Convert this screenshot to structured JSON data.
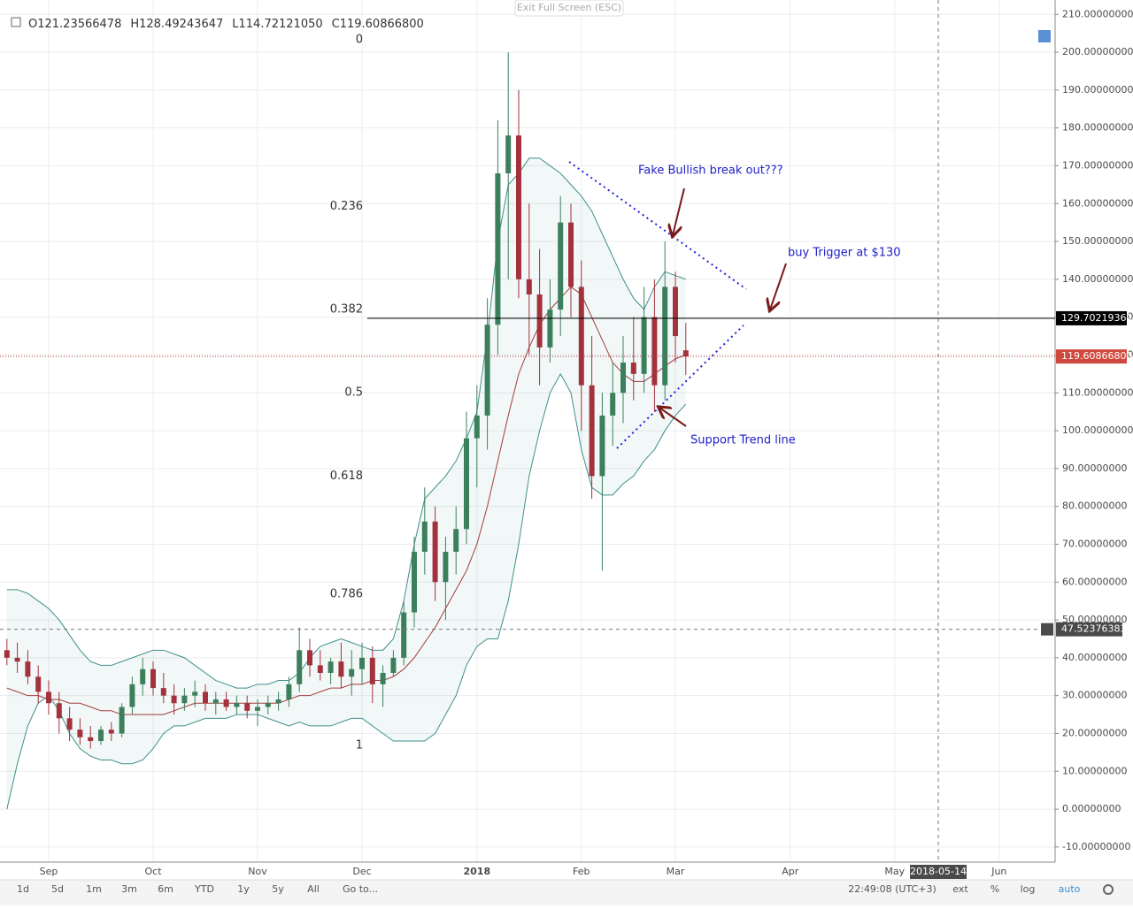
{
  "chart_data": {
    "type": "candlestick",
    "categories": [
      null,
      null,
      null,
      null,
      "Sep",
      null,
      null,
      null,
      null,
      null,
      null,
      null,
      null,
      null,
      "Oct",
      null,
      null,
      null,
      null,
      null,
      null,
      null,
      null,
      null,
      "Nov",
      null,
      null,
      null,
      null,
      null,
      null,
      null,
      null,
      null,
      "Dec",
      null,
      null,
      null,
      null,
      null,
      null,
      null,
      null,
      null,
      null,
      "2018",
      null,
      null,
      null,
      null,
      null,
      null,
      null,
      null,
      null,
      "Feb",
      null,
      null,
      null,
      null,
      null,
      null,
      null,
      null,
      "Mar",
      null,
      null,
      null,
      null,
      null,
      null,
      null,
      null,
      null,
      null,
      "Apr",
      null,
      null,
      null,
      null,
      null,
      null,
      null,
      null,
      null,
      "May",
      null,
      null,
      null,
      null,
      null,
      null,
      null,
      null,
      null,
      "Jun",
      null
    ],
    "open": [
      42,
      40,
      39,
      35,
      31,
      28,
      24,
      21,
      19,
      18,
      21,
      20,
      27,
      33,
      37,
      32,
      30,
      28,
      30,
      31,
      28,
      29,
      27,
      28,
      26,
      27,
      28,
      29,
      33,
      42,
      38,
      36,
      39,
      35,
      37,
      40,
      33,
      36,
      40,
      52,
      68,
      76,
      60,
      68,
      74,
      98,
      104,
      128,
      168,
      178,
      140,
      136,
      122,
      132,
      155,
      138,
      112,
      88,
      104,
      110,
      118,
      115,
      130,
      112,
      138,
      121.23566478,
      null,
      null,
      null,
      null,
      null,
      null,
      null,
      null,
      null,
      null,
      null,
      null,
      null,
      null,
      null,
      null,
      null,
      null,
      null,
      null,
      null,
      null,
      null,
      null,
      null,
      null,
      null,
      null,
      null,
      null,
      null
    ],
    "high": [
      45,
      44,
      42,
      38,
      34,
      31,
      27,
      24,
      22,
      22,
      23,
      28,
      35,
      40,
      39,
      36,
      33,
      32,
      34,
      33,
      31,
      31,
      30,
      30,
      29,
      30,
      31,
      35,
      48,
      45,
      42,
      40,
      44,
      42,
      44,
      43,
      38,
      42,
      55,
      72,
      85,
      80,
      72,
      80,
      105,
      112,
      135,
      182,
      200,
      190,
      160,
      148,
      140,
      162,
      160,
      145,
      125,
      110,
      118,
      125,
      130,
      138,
      140,
      150,
      142,
      128.49243647,
      null,
      null,
      null,
      null,
      null,
      null,
      null,
      null,
      null,
      null,
      null,
      null,
      null,
      null,
      null,
      null,
      null,
      null,
      null,
      null,
      null,
      null,
      null,
      null,
      null,
      null,
      null,
      null,
      null,
      null,
      null
    ],
    "low": [
      38,
      36,
      33,
      28,
      25,
      20,
      18,
      17,
      16,
      17,
      18,
      19,
      25,
      30,
      30,
      28,
      25,
      26,
      27,
      26,
      25,
      26,
      25,
      24,
      22,
      25,
      26,
      27,
      31,
      35,
      34,
      33,
      32,
      30,
      33,
      28,
      27,
      35,
      38,
      48,
      62,
      55,
      50,
      62,
      70,
      85,
      95,
      120,
      140,
      135,
      120,
      112,
      118,
      125,
      130,
      100,
      82,
      63,
      96,
      102,
      108,
      110,
      105,
      108,
      118,
      114.7212105,
      null,
      null,
      null,
      null,
      null,
      null,
      null,
      null,
      null,
      null,
      null,
      null,
      null,
      null,
      null,
      null,
      null,
      null,
      null,
      null,
      null,
      null,
      null,
      null,
      null,
      null,
      null,
      null,
      null,
      null,
      null
    ],
    "close": [
      40,
      39,
      35,
      31,
      28,
      24,
      21,
      19,
      18,
      21,
      20,
      27,
      33,
      37,
      32,
      30,
      28,
      30,
      31,
      28,
      29,
      27,
      28,
      26,
      27,
      28,
      29,
      33,
      42,
      38,
      36,
      39,
      35,
      37,
      40,
      33,
      36,
      40,
      52,
      68,
      76,
      60,
      68,
      74,
      98,
      104,
      128,
      168,
      178,
      140,
      136,
      122,
      132,
      155,
      138,
      112,
      88,
      104,
      110,
      118,
      115,
      130,
      112,
      138,
      125,
      119.608668,
      null,
      null,
      null,
      null,
      null,
      null,
      null,
      null,
      null,
      null,
      null,
      null,
      null,
      null,
      null,
      null,
      null,
      null,
      null,
      null,
      null,
      null,
      null,
      null,
      null,
      null,
      null,
      null,
      null,
      null,
      null
    ],
    "up_color": "#3c7f5c",
    "down_color": "#a3323d",
    "bands": {
      "upper": {
        "color": "#3f8f8a",
        "values": [
          58,
          58,
          57,
          55,
          53,
          50,
          46,
          42,
          39,
          38,
          38,
          39,
          40,
          41,
          42,
          42,
          41,
          40,
          38,
          36,
          34,
          33,
          32,
          32,
          33,
          33,
          34,
          34,
          36,
          40,
          43,
          44,
          45,
          44,
          43,
          42,
          42,
          45,
          55,
          70,
          82,
          85,
          88,
          92,
          98,
          105,
          125,
          150,
          165,
          168,
          172,
          172,
          170,
          168,
          165,
          162,
          158,
          152,
          146,
          140,
          135,
          132,
          138,
          142,
          141,
          140,
          null,
          null,
          null,
          null,
          null,
          null,
          null,
          null,
          null,
          null,
          null,
          null,
          null,
          null,
          null,
          null,
          null,
          null,
          null,
          null,
          null,
          null,
          null,
          null,
          null,
          null,
          null,
          null,
          null,
          null,
          null
        ]
      },
      "middle": {
        "color": "#a33a3a",
        "values": [
          32,
          31,
          30,
          30,
          29,
          29,
          28,
          28,
          27,
          26,
          26,
          25,
          25,
          25,
          25,
          25,
          26,
          27,
          28,
          28,
          28,
          28,
          28,
          28,
          28,
          28,
          28,
          29,
          30,
          30,
          31,
          32,
          32,
          33,
          33,
          34,
          34,
          35,
          37,
          40,
          44,
          48,
          53,
          58,
          63,
          70,
          80,
          92,
          104,
          115,
          122,
          128,
          132,
          135,
          138,
          136,
          130,
          124,
          118,
          115,
          113,
          113,
          115,
          117,
          119,
          120,
          null,
          null,
          null,
          null,
          null,
          null,
          null,
          null,
          null,
          null,
          null,
          null,
          null,
          null,
          null,
          null,
          null,
          null,
          null,
          null,
          null,
          null,
          null,
          null,
          null,
          null,
          null,
          null,
          null,
          null,
          null
        ]
      },
      "lower": {
        "color": "#3f8f8a",
        "values": [
          0,
          12,
          22,
          28,
          30,
          26,
          20,
          16,
          14,
          13,
          13,
          12,
          12,
          13,
          16,
          20,
          22,
          22,
          23,
          24,
          24,
          24,
          25,
          25,
          25,
          24,
          23,
          22,
          23,
          22,
          22,
          22,
          23,
          24,
          24,
          22,
          20,
          18,
          18,
          18,
          18,
          20,
          25,
          30,
          38,
          43,
          45,
          45,
          55,
          70,
          88,
          100,
          110,
          115,
          110,
          95,
          85,
          83,
          83,
          86,
          88,
          92,
          95,
          100,
          104,
          107,
          null,
          null,
          null,
          null,
          null,
          null,
          null,
          null,
          null,
          null,
          null,
          null,
          null,
          null,
          null,
          null,
          null,
          null,
          null,
          null,
          null,
          null,
          null,
          null,
          null,
          null,
          null,
          null,
          null,
          null,
          null
        ]
      }
    },
    "ylim": [
      -14,
      213.8
    ],
    "yticks": [
      {
        "value": -10,
        "label": "-10.00000000"
      },
      {
        "value": 0,
        "label": "0.00000000"
      },
      {
        "value": 10,
        "label": "10.00000000"
      },
      {
        "value": 20,
        "label": "20.00000000"
      },
      {
        "value": 30,
        "label": "30.00000000"
      },
      {
        "value": 40,
        "label": "40.00000000"
      },
      {
        "value": 50,
        "label": "50.00000000"
      },
      {
        "value": 60,
        "label": "60.00000000"
      },
      {
        "value": 70,
        "label": "70.00000000"
      },
      {
        "value": 80,
        "label": "80.00000000"
      },
      {
        "value": 90,
        "label": "90.00000000"
      },
      {
        "value": 100,
        "label": "100.00000000"
      },
      {
        "value": 110,
        "label": "110.00000000"
      },
      {
        "value": 120,
        "label": "120.00000000"
      },
      {
        "value": 130,
        "label": "130.00000000"
      },
      {
        "value": 140,
        "label": "140.00000000"
      },
      {
        "value": 150,
        "label": "150.00000000"
      },
      {
        "value": 160,
        "label": "160.00000000"
      },
      {
        "value": 170,
        "label": "170.00000000"
      },
      {
        "value": 180,
        "label": "180.00000000"
      },
      {
        "value": 190,
        "label": "190.00000000"
      },
      {
        "value": 200,
        "label": "200.00000000"
      },
      {
        "value": 210,
        "label": "210.00000000"
      }
    ],
    "grid": true,
    "fib_levels": [
      {
        "ratio": 0,
        "value": 200.9
      },
      {
        "ratio": 0.236,
        "value": 156.9
      },
      {
        "ratio": 0.382,
        "value": 129.70219361
      },
      {
        "ratio": 0.5,
        "value": 107.7
      },
      {
        "ratio": 0.618,
        "value": 85.7
      },
      {
        "ratio": 0.786,
        "value": 54.4
      },
      {
        "ratio": 1,
        "value": 14.5
      }
    ],
    "hline": {
      "value": 129.70219361,
      "label": "129.70219361"
    },
    "last_price": {
      "value": 119.608668,
      "label": "119.60866800"
    },
    "crosshair": {
      "value": 47.52376383,
      "label": "47.52376383",
      "date": "2018-05-14"
    },
    "annotations": {
      "fake_breakout": "Fake Bullish break out???",
      "buy_trigger": "buy Trigger at $130",
      "support": "Support Trend line"
    }
  },
  "header": {
    "ohlc": [
      {
        "key": "O",
        "value": "121.23566478"
      },
      {
        "key": "H",
        "value": "128.49243647"
      },
      {
        "key": "L",
        "value": "114.72121050"
      },
      {
        "key": "C",
        "value": "119.60866800"
      }
    ]
  },
  "ui": {
    "exit_button": "Exit Full Screen (ESC)",
    "toolbar_left": [
      "1d",
      "5d",
      "1m",
      "3m",
      "6m",
      "YTD",
      "1y",
      "5y",
      "All",
      "Go to..."
    ],
    "time": "22:49:08 (UTC+3)",
    "toolbar_right": [
      "ext",
      "%",
      "log",
      "auto"
    ]
  }
}
